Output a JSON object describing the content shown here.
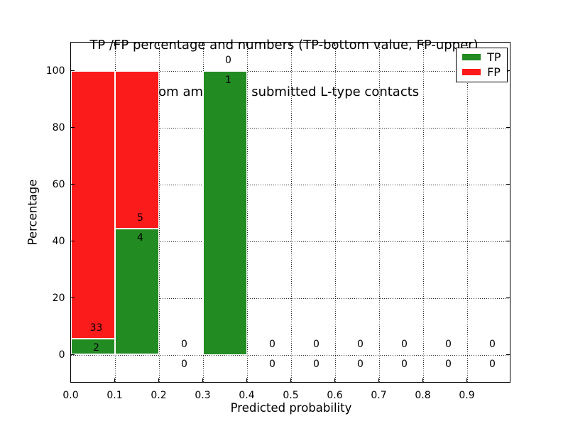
{
  "figure": {
    "title_line1": "TP /FP percentage and numbers (TP-bottom value, FP-upper)",
    "title_line2": "from among 45 submitted L-type contacts"
  },
  "chart_data": {
    "type": "bar",
    "stacked": true,
    "title": "TP /FP percentage and numbers (TP-bottom value, FP-upper) from among 45 submitted L-type contacts",
    "xlabel": "Predicted probability",
    "ylabel": "Percentage",
    "xlim": [
      0.0,
      1.0
    ],
    "ylim": [
      -10,
      110
    ],
    "x_tick_values": [
      0.0,
      0.1,
      0.2,
      0.3,
      0.4,
      0.5,
      0.6,
      0.7,
      0.8,
      0.9
    ],
    "x_tick_labels": [
      "0.0",
      "0.1",
      "0.2",
      "0.3",
      "0.4",
      "0.5",
      "0.6",
      "0.7",
      "0.8",
      "0.9"
    ],
    "y_tick_values": [
      0,
      20,
      40,
      60,
      80,
      100
    ],
    "y_tick_labels": [
      "0",
      "20",
      "40",
      "60",
      "80",
      "100"
    ],
    "grid": "dotted",
    "total_contacts": 45,
    "colors": {
      "tp": "#228b22",
      "fp": "#fc1b1b"
    },
    "legend": {
      "position": "upper right",
      "entries": [
        {
          "label": "TP",
          "color": "#228b22"
        },
        {
          "label": "FP",
          "color": "#fc1b1b"
        }
      ]
    },
    "label_convention": "each bin shows TP count (bottom) and FP count (upper)",
    "bins": [
      {
        "x_start": 0.0,
        "x_end": 0.1,
        "tp_count": 2,
        "fp_count": 33,
        "tp_pct": 5.714,
        "fp_pct": 94.286
      },
      {
        "x_start": 0.1,
        "x_end": 0.2,
        "tp_count": 4,
        "fp_count": 5,
        "tp_pct": 44.444,
        "fp_pct": 55.556
      },
      {
        "x_start": 0.2,
        "x_end": 0.3,
        "tp_count": 0,
        "fp_count": 0,
        "tp_pct": 0,
        "fp_pct": 0
      },
      {
        "x_start": 0.3,
        "x_end": 0.4,
        "tp_count": 1,
        "fp_count": 0,
        "tp_pct": 100,
        "fp_pct": 0
      },
      {
        "x_start": 0.4,
        "x_end": 0.5,
        "tp_count": 0,
        "fp_count": 0,
        "tp_pct": 0,
        "fp_pct": 0
      },
      {
        "x_start": 0.5,
        "x_end": 0.6,
        "tp_count": 0,
        "fp_count": 0,
        "tp_pct": 0,
        "fp_pct": 0
      },
      {
        "x_start": 0.6,
        "x_end": 0.7,
        "tp_count": 0,
        "fp_count": 0,
        "tp_pct": 0,
        "fp_pct": 0
      },
      {
        "x_start": 0.7,
        "x_end": 0.8,
        "tp_count": 0,
        "fp_count": 0,
        "tp_pct": 0,
        "fp_pct": 0
      },
      {
        "x_start": 0.8,
        "x_end": 0.9,
        "tp_count": 0,
        "fp_count": 0,
        "tp_pct": 0,
        "fp_pct": 0
      },
      {
        "x_start": 0.9,
        "x_end": 1.0,
        "tp_count": 0,
        "fp_count": 0,
        "tp_pct": 0,
        "fp_pct": 0
      }
    ]
  }
}
